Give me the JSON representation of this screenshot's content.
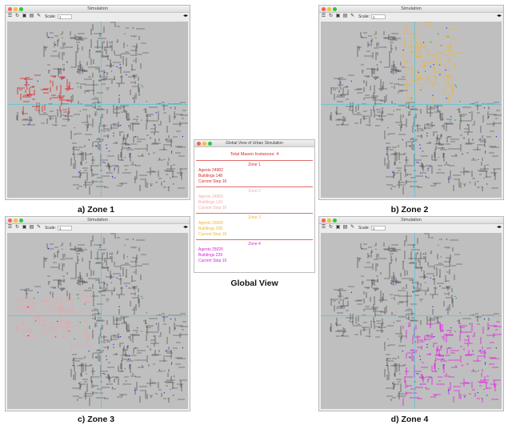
{
  "simulation_windows": [
    {
      "id": "zone1",
      "title": "Simulation",
      "scale_label": "Scale:",
      "scale_value": "1",
      "highlight_color": "#e02020",
      "caption": "a) Zone 1"
    },
    {
      "id": "zone2",
      "title": "Simulation",
      "scale_label": "Scale:",
      "scale_value": "1",
      "highlight_color": "#f2b233",
      "caption": "b) Zone 2"
    },
    {
      "id": "zone3",
      "title": "Simulation",
      "scale_label": "Scale:",
      "scale_value": "1",
      "highlight_color": "#f4a0a8",
      "caption": "c) Zone 3"
    },
    {
      "id": "zone4",
      "title": "Simulation",
      "scale_label": "Scale:",
      "scale_value": "1",
      "highlight_color": "#e020e0",
      "caption": "d) Zone 4"
    }
  ],
  "toolbar_icons": [
    "layers-icon",
    "refresh-icon",
    "camera-icon",
    "chart-icon",
    "wrench-icon"
  ],
  "global_view": {
    "window_title": "Global View of Urban Simulation",
    "total": "Total Mason Instances: 4",
    "caption": "Global View",
    "zones": [
      {
        "name": "Zone 1",
        "agents": "Agents 24982",
        "buildings": "Buildings 148",
        "step": "Current Step 16",
        "color": "#d42a2a",
        "head_color": "#d42a2a"
      },
      {
        "name": "Zone 2",
        "agents": "Agents 24950",
        "buildings": "Buildings 124",
        "step": "Current Step 16",
        "color": "#f4a9a9",
        "head_color": "#f4a9a9"
      },
      {
        "name": "Zone 3",
        "agents": "Agents 25000",
        "buildings": "Buildings 258",
        "step": "Current Step 16",
        "color": "#f2b233",
        "head_color": "#f2b233"
      },
      {
        "name": "Zone 4",
        "agents": "Agents 25025",
        "buildings": "Buildings 229",
        "step": "Current Step 15",
        "color": "#d41fd4",
        "head_color": "#d41fd4"
      }
    ]
  },
  "colors": {
    "canvas_bg": "#bfbfbf",
    "road": "#3a3a3a",
    "agent_blue": "#2a2ad0",
    "agent_green": "#2a9a2a",
    "boundary_cyan": "#44c8d8"
  }
}
